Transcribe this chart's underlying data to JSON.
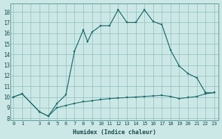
{
  "xlabel": "Humidex (Indice chaleur)",
  "bg_color": "#cce8e6",
  "grid_color": "#8bbcba",
  "line_color": "#1a6b6a",
  "marker_color": "#1a6b6a",
  "yticks": [
    8,
    9,
    10,
    11,
    12,
    13,
    14,
    15,
    16,
    17,
    18
  ],
  "xlim_min": -0.3,
  "xlim_max": 23.5,
  "ylim_min": 7.8,
  "ylim_max": 18.8,
  "upper_x": [
    0,
    1,
    3,
    4,
    5,
    6,
    7,
    8,
    8.5,
    9,
    10,
    11,
    12,
    13,
    14,
    15,
    16,
    17,
    18,
    19,
    20,
    21,
    22,
    23
  ],
  "upper_y": [
    10,
    10.3,
    8.6,
    8.2,
    9.4,
    10.2,
    14.3,
    16.3,
    15.2,
    16.1,
    16.7,
    16.7,
    18.2,
    17.0,
    17.0,
    18.2,
    17.1,
    16.8,
    14.4,
    12.9,
    12.2,
    11.8,
    10.4,
    10.4
  ],
  "lower_x": [
    0,
    1,
    3,
    4,
    5,
    6,
    7,
    8,
    9,
    10,
    11,
    12,
    13,
    14,
    15,
    16,
    17,
    18,
    19,
    20,
    21,
    22,
    23
  ],
  "lower_y": [
    10,
    10.3,
    8.6,
    8.2,
    9.0,
    9.2,
    9.4,
    9.55,
    9.65,
    9.75,
    9.85,
    9.9,
    9.95,
    10.0,
    10.05,
    10.1,
    10.15,
    10.05,
    9.85,
    9.95,
    10.05,
    10.3,
    10.4
  ],
  "xtick_labels": [
    "0",
    "1",
    "",
    "3",
    "4",
    "5",
    "6",
    "7",
    "8",
    "9",
    "10",
    "11",
    "12",
    "13",
    "14",
    "15",
    "16",
    "17",
    "18",
    "19",
    "20",
    "21",
    "22",
    "23"
  ]
}
